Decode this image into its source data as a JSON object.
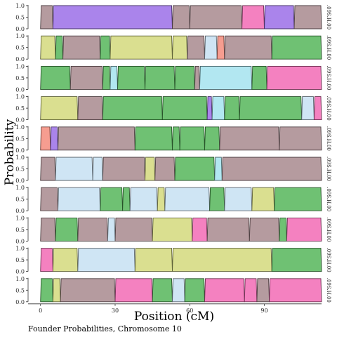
{
  "chart_data": {
    "type": "area",
    "title": "",
    "caption": "Founder Probabilities, Chromosome 10",
    "xlabel": "Position (cM)",
    "ylabel": "Probability",
    "xlim": [
      -5,
      113
    ],
    "ylim": [
      0,
      1
    ],
    "x_ticks": [
      0,
      30,
      60,
      90
    ],
    "y_ticks": [
      "0.0",
      "0.5",
      "1.0"
    ],
    "y_tick_values": [
      0,
      0.5,
      1
    ],
    "founder_colors": {
      "A": "#d4d97c",
      "B": "#f58c7c",
      "C": "#f26bb5",
      "D": "#a5e3ee",
      "E": "#a88a8e",
      "F": "#56b65a",
      "G": "#9b6ee8",
      "H": "#c7e0f2"
    },
    "panels": [
      {
        "label": ".09S.H.00",
        "segments": [
          {
            "start": 0,
            "end": 5,
            "founder": "E"
          },
          {
            "start": 5,
            "end": 53,
            "founder": "G"
          },
          {
            "start": 53,
            "end": 60,
            "founder": "E"
          },
          {
            "start": 60,
            "end": 81,
            "founder": "E"
          },
          {
            "start": 81,
            "end": 90,
            "founder": "C"
          },
          {
            "start": 90,
            "end": 102,
            "founder": "G"
          },
          {
            "start": 102,
            "end": 113,
            "founder": "E"
          }
        ]
      },
      {
        "label": ".09S.H.00",
        "segments": [
          {
            "start": 0,
            "end": 6,
            "founder": "A"
          },
          {
            "start": 6,
            "end": 9,
            "founder": "F"
          },
          {
            "start": 9,
            "end": 24,
            "founder": "E"
          },
          {
            "start": 24,
            "end": 28,
            "founder": "F"
          },
          {
            "start": 28,
            "end": 53,
            "founder": "A"
          },
          {
            "start": 53,
            "end": 59,
            "founder": "A"
          },
          {
            "start": 59,
            "end": 66,
            "founder": "E"
          },
          {
            "start": 66,
            "end": 71,
            "founder": "H"
          },
          {
            "start": 71,
            "end": 74,
            "founder": "B"
          },
          {
            "start": 74,
            "end": 93,
            "founder": "E"
          },
          {
            "start": 93,
            "end": 113,
            "founder": "F"
          }
        ]
      },
      {
        "label": ".09S.H.00",
        "segments": [
          {
            "start": 0,
            "end": 12,
            "founder": "F"
          },
          {
            "start": 12,
            "end": 25,
            "founder": "E"
          },
          {
            "start": 25,
            "end": 28,
            "founder": "F"
          },
          {
            "start": 28,
            "end": 31,
            "founder": "D"
          },
          {
            "start": 31,
            "end": 42,
            "founder": "F"
          },
          {
            "start": 42,
            "end": 54,
            "founder": "F"
          },
          {
            "start": 54,
            "end": 62,
            "founder": "F"
          },
          {
            "start": 62,
            "end": 64,
            "founder": "E"
          },
          {
            "start": 64,
            "end": 85,
            "founder": "D"
          },
          {
            "start": 85,
            "end": 91,
            "founder": "F"
          },
          {
            "start": 91,
            "end": 113,
            "founder": "C"
          }
        ]
      },
      {
        "label": ".09S.H.00",
        "segments": [
          {
            "start": 0,
            "end": 15,
            "founder": "A"
          },
          {
            "start": 15,
            "end": 25,
            "founder": "E"
          },
          {
            "start": 25,
            "end": 49,
            "founder": "F"
          },
          {
            "start": 49,
            "end": 67,
            "founder": "F"
          },
          {
            "start": 67,
            "end": 69,
            "founder": "G"
          },
          {
            "start": 69,
            "end": 74,
            "founder": "D"
          },
          {
            "start": 74,
            "end": 80,
            "founder": "F"
          },
          {
            "start": 80,
            "end": 105,
            "founder": "F"
          },
          {
            "start": 105,
            "end": 110,
            "founder": "H"
          },
          {
            "start": 110,
            "end": 113,
            "founder": "C"
          }
        ]
      },
      {
        "label": ".09S.H.00",
        "segments": [
          {
            "start": 0,
            "end": 4,
            "founder": "B"
          },
          {
            "start": 4,
            "end": 7,
            "founder": "G"
          },
          {
            "start": 7,
            "end": 38,
            "founder": "E"
          },
          {
            "start": 38,
            "end": 53,
            "founder": "F"
          },
          {
            "start": 53,
            "end": 56,
            "founder": "F"
          },
          {
            "start": 56,
            "end": 66,
            "founder": "F"
          },
          {
            "start": 66,
            "end": 72,
            "founder": "F"
          },
          {
            "start": 72,
            "end": 96,
            "founder": "E"
          },
          {
            "start": 96,
            "end": 113,
            "founder": "E"
          }
        ]
      },
      {
        "label": ".09S.H.00",
        "segments": [
          {
            "start": 0,
            "end": 6,
            "founder": "E"
          },
          {
            "start": 6,
            "end": 21,
            "founder": "H"
          },
          {
            "start": 21,
            "end": 25,
            "founder": "H"
          },
          {
            "start": 25,
            "end": 42,
            "founder": "E"
          },
          {
            "start": 42,
            "end": 46,
            "founder": "A"
          },
          {
            "start": 46,
            "end": 54,
            "founder": "E"
          },
          {
            "start": 54,
            "end": 70,
            "founder": "F"
          },
          {
            "start": 70,
            "end": 73,
            "founder": "D"
          },
          {
            "start": 73,
            "end": 113,
            "founder": "E"
          }
        ]
      },
      {
        "label": ".09S.H.00",
        "segments": [
          {
            "start": 0,
            "end": 7,
            "founder": "E"
          },
          {
            "start": 7,
            "end": 24,
            "founder": "H"
          },
          {
            "start": 24,
            "end": 33,
            "founder": "F"
          },
          {
            "start": 33,
            "end": 36,
            "founder": "F"
          },
          {
            "start": 36,
            "end": 47,
            "founder": "H"
          },
          {
            "start": 47,
            "end": 50,
            "founder": "A"
          },
          {
            "start": 50,
            "end": 68,
            "founder": "H"
          },
          {
            "start": 68,
            "end": 74,
            "founder": "F"
          },
          {
            "start": 74,
            "end": 85,
            "founder": "H"
          },
          {
            "start": 85,
            "end": 94,
            "founder": "A"
          },
          {
            "start": 94,
            "end": 113,
            "founder": "F"
          }
        ]
      },
      {
        "label": ".09S.H.00",
        "segments": [
          {
            "start": 0,
            "end": 6,
            "founder": "E"
          },
          {
            "start": 6,
            "end": 15,
            "founder": "F"
          },
          {
            "start": 15,
            "end": 27,
            "founder": "E"
          },
          {
            "start": 27,
            "end": 30,
            "founder": "H"
          },
          {
            "start": 30,
            "end": 45,
            "founder": "E"
          },
          {
            "start": 45,
            "end": 61,
            "founder": "A"
          },
          {
            "start": 61,
            "end": 67,
            "founder": "C"
          },
          {
            "start": 67,
            "end": 84,
            "founder": "E"
          },
          {
            "start": 84,
            "end": 96,
            "founder": "E"
          },
          {
            "start": 96,
            "end": 99,
            "founder": "F"
          },
          {
            "start": 99,
            "end": 113,
            "founder": "C"
          }
        ]
      },
      {
        "label": ".09S.H.00",
        "segments": [
          {
            "start": 0,
            "end": 5,
            "founder": "C"
          },
          {
            "start": 5,
            "end": 15,
            "founder": "A"
          },
          {
            "start": 15,
            "end": 38,
            "founder": "H"
          },
          {
            "start": 38,
            "end": 53,
            "founder": "A"
          },
          {
            "start": 53,
            "end": 93,
            "founder": "A"
          },
          {
            "start": 93,
            "end": 113,
            "founder": "F"
          }
        ]
      },
      {
        "label": ".09S.H.00",
        "segments": [
          {
            "start": 0,
            "end": 5,
            "founder": "F"
          },
          {
            "start": 5,
            "end": 8,
            "founder": "A"
          },
          {
            "start": 8,
            "end": 30,
            "founder": "E"
          },
          {
            "start": 30,
            "end": 45,
            "founder": "C"
          },
          {
            "start": 45,
            "end": 53,
            "founder": "F"
          },
          {
            "start": 53,
            "end": 58,
            "founder": "H"
          },
          {
            "start": 58,
            "end": 66,
            "founder": "F"
          },
          {
            "start": 66,
            "end": 82,
            "founder": "C"
          },
          {
            "start": 82,
            "end": 87,
            "founder": "C"
          },
          {
            "start": 87,
            "end": 92,
            "founder": "E"
          },
          {
            "start": 92,
            "end": 113,
            "founder": "C"
          }
        ]
      }
    ]
  }
}
